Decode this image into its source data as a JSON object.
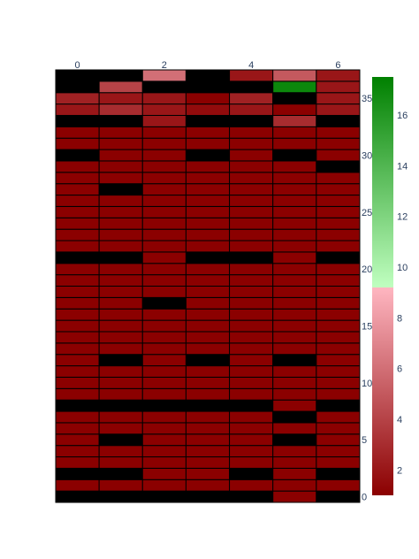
{
  "chart_data": {
    "type": "heatmap",
    "x": [
      0,
      1,
      2,
      3,
      4,
      5,
      6
    ],
    "x_tick_labels": [
      "0",
      "2",
      "4",
      "6"
    ],
    "x_tick_values": [
      0,
      2,
      4,
      6
    ],
    "y_range": [
      0,
      37
    ],
    "y_tick_labels": [
      "0",
      "5",
      "10",
      "15",
      "20",
      "25",
      "30",
      "35"
    ],
    "y_tick_values": [
      0,
      5,
      10,
      15,
      20,
      25,
      30,
      35
    ],
    "colorbar": {
      "range": [
        1,
        17.5
      ],
      "tick_labels": [
        "2",
        "4",
        "6",
        "8",
        "10",
        "12",
        "14",
        "16"
      ],
      "tick_values": [
        2,
        4,
        6,
        8,
        10,
        12,
        14,
        16
      ],
      "colors": {
        "low": "#8b0000",
        "mid_red": "#ffb6c1",
        "mid_green": "#c0ffc0",
        "high": "#008000",
        "zero": "#000000",
        "cell_border": "#000000",
        "tick_text": "#2a3f5f"
      },
      "split_value": 9.2
    },
    "z": [
      [
        0,
        0,
        0,
        0,
        0,
        1,
        0
      ],
      [
        1,
        1,
        1,
        1,
        1,
        1,
        1
      ],
      [
        0,
        0,
        1,
        1,
        0,
        1,
        0
      ],
      [
        1,
        1,
        1,
        1,
        1,
        1,
        1
      ],
      [
        1,
        1,
        1,
        1,
        1,
        1,
        1
      ],
      [
        1,
        0,
        1,
        1,
        1,
        0,
        1
      ],
      [
        1,
        1,
        1,
        1,
        1,
        1,
        1
      ],
      [
        1,
        1,
        1,
        1,
        1,
        0,
        1
      ],
      [
        0,
        0,
        0,
        0,
        0,
        1,
        0
      ],
      [
        1,
        1,
        1,
        1,
        1,
        1,
        1
      ],
      [
        1,
        1,
        1,
        1,
        1,
        1,
        1
      ],
      [
        1,
        1,
        1,
        1,
        1,
        1,
        1
      ],
      [
        1,
        0,
        1,
        0,
        1,
        0,
        1
      ],
      [
        1,
        1,
        1,
        1,
        1,
        1,
        1
      ],
      [
        1,
        1,
        1,
        1,
        1,
        1,
        1
      ],
      [
        1,
        1,
        1,
        1,
        1,
        1,
        1
      ],
      [
        1,
        1,
        1,
        1,
        1,
        1,
        1
      ],
      [
        1,
        1,
        0,
        1,
        1,
        1,
        1
      ],
      [
        1,
        1,
        1,
        1,
        1,
        1,
        1
      ],
      [
        1,
        1,
        1,
        1,
        1,
        1,
        1
      ],
      [
        1,
        1,
        1,
        1,
        1,
        1,
        1
      ],
      [
        0,
        0,
        1,
        0,
        0,
        1,
        0
      ],
      [
        1,
        1,
        1,
        1,
        1,
        1,
        1
      ],
      [
        1,
        1,
        1,
        1,
        1,
        1,
        1
      ],
      [
        1,
        1,
        1,
        1,
        1,
        1,
        1
      ],
      [
        1,
        1,
        1,
        1,
        1,
        1,
        1
      ],
      [
        1,
        1,
        1,
        1,
        1,
        1,
        1
      ],
      [
        1,
        0,
        1,
        1,
        1,
        1,
        1
      ],
      [
        1,
        1,
        1,
        1,
        1,
        1,
        1
      ],
      [
        1,
        1,
        1,
        1,
        1,
        1,
        0
      ],
      [
        0,
        1,
        1,
        0,
        1,
        0,
        1
      ],
      [
        1,
        1,
        1,
        1,
        1,
        1,
        1
      ],
      [
        1,
        1,
        1,
        1,
        1,
        1,
        1
      ],
      [
        0,
        0,
        2,
        0,
        0,
        3,
        0
      ],
      [
        2,
        3,
        2,
        1.5,
        2,
        1,
        2
      ],
      [
        2.5,
        2,
        2,
        1,
        2.5,
        0,
        2
      ],
      [
        0,
        4,
        0,
        0,
        0,
        17,
        2
      ],
      [
        0,
        0,
        6,
        0,
        2,
        5,
        2
      ]
    ]
  }
}
